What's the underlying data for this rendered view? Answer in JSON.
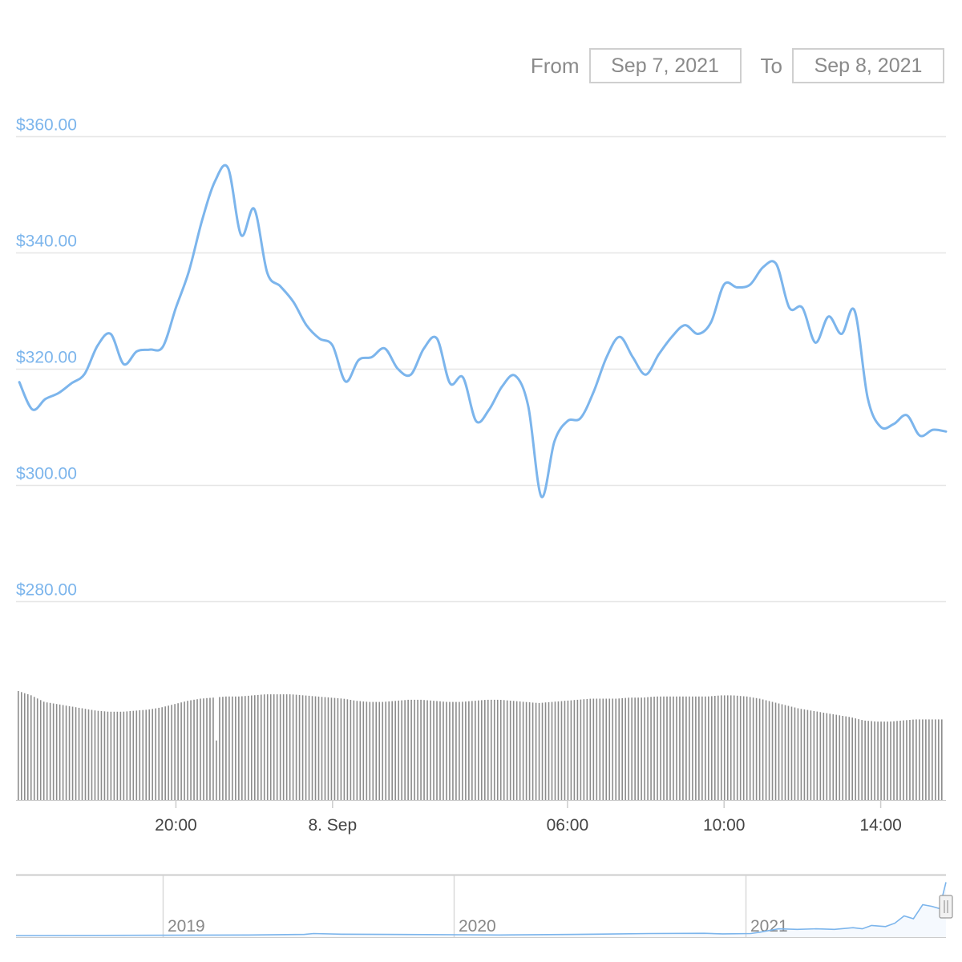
{
  "range_selector": {
    "from_label": "From",
    "from_value": "Sep 7, 2021",
    "to_label": "To",
    "to_value": "Sep 8, 2021"
  },
  "colors": {
    "line": "#7cb5ec",
    "grid": "#e6e6e6",
    "volume": "#8c8c8c",
    "axis_text": "#444444",
    "y_label": "#7cb5ec"
  },
  "chart_data": {
    "type": "line",
    "title": "",
    "xlabel": "",
    "ylabel": "",
    "y_tick_labels": [
      "$360.00",
      "$340.00",
      "$320.00",
      "$300.00",
      "$280.00"
    ],
    "y_ticks": [
      360,
      340,
      320,
      300,
      280
    ],
    "ylim": [
      280,
      360
    ],
    "x_tick_labels": [
      "20:00",
      "8. Sep",
      "06:00",
      "10:00",
      "14:00"
    ],
    "x_ticks": [
      "2021-09-07 20:00",
      "2021-09-08 00:00",
      "2021-09-08 06:00",
      "2021-09-08 10:00",
      "2021-09-08 14:00"
    ],
    "xlim": [
      "2021-09-07 15:55",
      "2021-09-08 15:40"
    ],
    "grid": true,
    "legend": "none",
    "series": [
      {
        "x": [
          "2021-09-07 16:00",
          "2021-09-07 16:20",
          "2021-09-07 16:40",
          "2021-09-07 17:00",
          "2021-09-07 17:20",
          "2021-09-07 17:40",
          "2021-09-07 18:00",
          "2021-09-07 18:20",
          "2021-09-07 18:40",
          "2021-09-07 19:00",
          "2021-09-07 19:20",
          "2021-09-07 19:40",
          "2021-09-07 20:00",
          "2021-09-07 20:20",
          "2021-09-07 20:40",
          "2021-09-07 21:00",
          "2021-09-07 21:20",
          "2021-09-07 21:40",
          "2021-09-07 22:00",
          "2021-09-07 22:20",
          "2021-09-07 22:40",
          "2021-09-07 23:00",
          "2021-09-07 23:20",
          "2021-09-07 23:40",
          "2021-09-08 00:00",
          "2021-09-08 00:20",
          "2021-09-08 00:40",
          "2021-09-08 01:00",
          "2021-09-08 01:20",
          "2021-09-08 01:40",
          "2021-09-08 02:00",
          "2021-09-08 02:20",
          "2021-09-08 02:40",
          "2021-09-08 03:00",
          "2021-09-08 03:20",
          "2021-09-08 03:40",
          "2021-09-08 04:00",
          "2021-09-08 04:20",
          "2021-09-08 04:40",
          "2021-09-08 05:00",
          "2021-09-08 05:20",
          "2021-09-08 05:40",
          "2021-09-08 06:00",
          "2021-09-08 06:20",
          "2021-09-08 06:40",
          "2021-09-08 07:00",
          "2021-09-08 07:20",
          "2021-09-08 07:40",
          "2021-09-08 08:00",
          "2021-09-08 08:20",
          "2021-09-08 08:40",
          "2021-09-08 09:00",
          "2021-09-08 09:20",
          "2021-09-08 09:40",
          "2021-09-08 10:00",
          "2021-09-08 10:20",
          "2021-09-08 10:40",
          "2021-09-08 11:00",
          "2021-09-08 11:20",
          "2021-09-08 11:40",
          "2021-09-08 12:00",
          "2021-09-08 12:20",
          "2021-09-08 12:40",
          "2021-09-08 13:00",
          "2021-09-08 13:20",
          "2021-09-08 13:40",
          "2021-09-08 14:00",
          "2021-09-08 14:20",
          "2021-09-08 14:40",
          "2021-09-08 15:00",
          "2021-09-08 15:20",
          "2021-09-08 15:40"
        ],
        "y": [
          317.7,
          313.0,
          314.8,
          315.8,
          317.5,
          319.1,
          324.0,
          326.0,
          320.8,
          323.0,
          323.3,
          323.8,
          330.5,
          336.8,
          345.5,
          352.3,
          354.5,
          343.0,
          347.5,
          336.5,
          334.2,
          331.5,
          327.5,
          325.2,
          324.0,
          317.8,
          321.5,
          322.0,
          323.5,
          320.0,
          319.0,
          323.5,
          325.2,
          317.5,
          318.5,
          311.0,
          313.0,
          317.0,
          318.8,
          313.5,
          298.0,
          307.5,
          311.0,
          311.5,
          316.0,
          322.0,
          325.5,
          322.0,
          319.0,
          322.5,
          325.5,
          327.5,
          326.0,
          328.0,
          334.5,
          334.0,
          334.5,
          337.5,
          338.0,
          330.5,
          330.5,
          324.5,
          329.0,
          326.0,
          330.0,
          315.0,
          310.0,
          310.5,
          312.0,
          308.5,
          309.5,
          309.2
        ],
        "stroke_hex": "#7cb5ec"
      }
    ],
    "volume": {
      "type": "bar",
      "values": [
        1.0,
        0.96,
        0.9,
        0.88,
        0.86,
        0.84,
        0.82,
        0.81,
        0.81,
        0.82,
        0.83,
        0.85,
        0.88,
        0.91,
        0.93,
        0.94,
        0.95,
        0.95,
        0.96,
        0.97,
        0.97,
        0.97,
        0.96,
        0.95,
        0.94,
        0.93,
        0.91,
        0.9,
        0.9,
        0.91,
        0.92,
        0.92,
        0.91,
        0.9,
        0.9,
        0.91,
        0.92,
        0.92,
        0.91,
        0.9,
        0.89,
        0.9,
        0.91,
        0.92,
        0.93,
        0.93,
        0.93,
        0.94,
        0.94,
        0.95,
        0.95,
        0.95,
        0.95,
        0.95,
        0.96,
        0.96,
        0.95,
        0.93,
        0.9,
        0.87,
        0.84,
        0.82,
        0.8,
        0.78,
        0.76,
        0.73,
        0.72,
        0.72,
        0.73,
        0.74,
        0.74,
        0.74
      ],
      "dip_at": "2021-09-07 21:00"
    },
    "navigator": {
      "x_tick_labels": [
        "2019",
        "2020",
        "2021"
      ],
      "handle": "right",
      "series_shape": "flat near zero through 2019–2020, rising in 2021, sharp rise at the far right end"
    }
  }
}
